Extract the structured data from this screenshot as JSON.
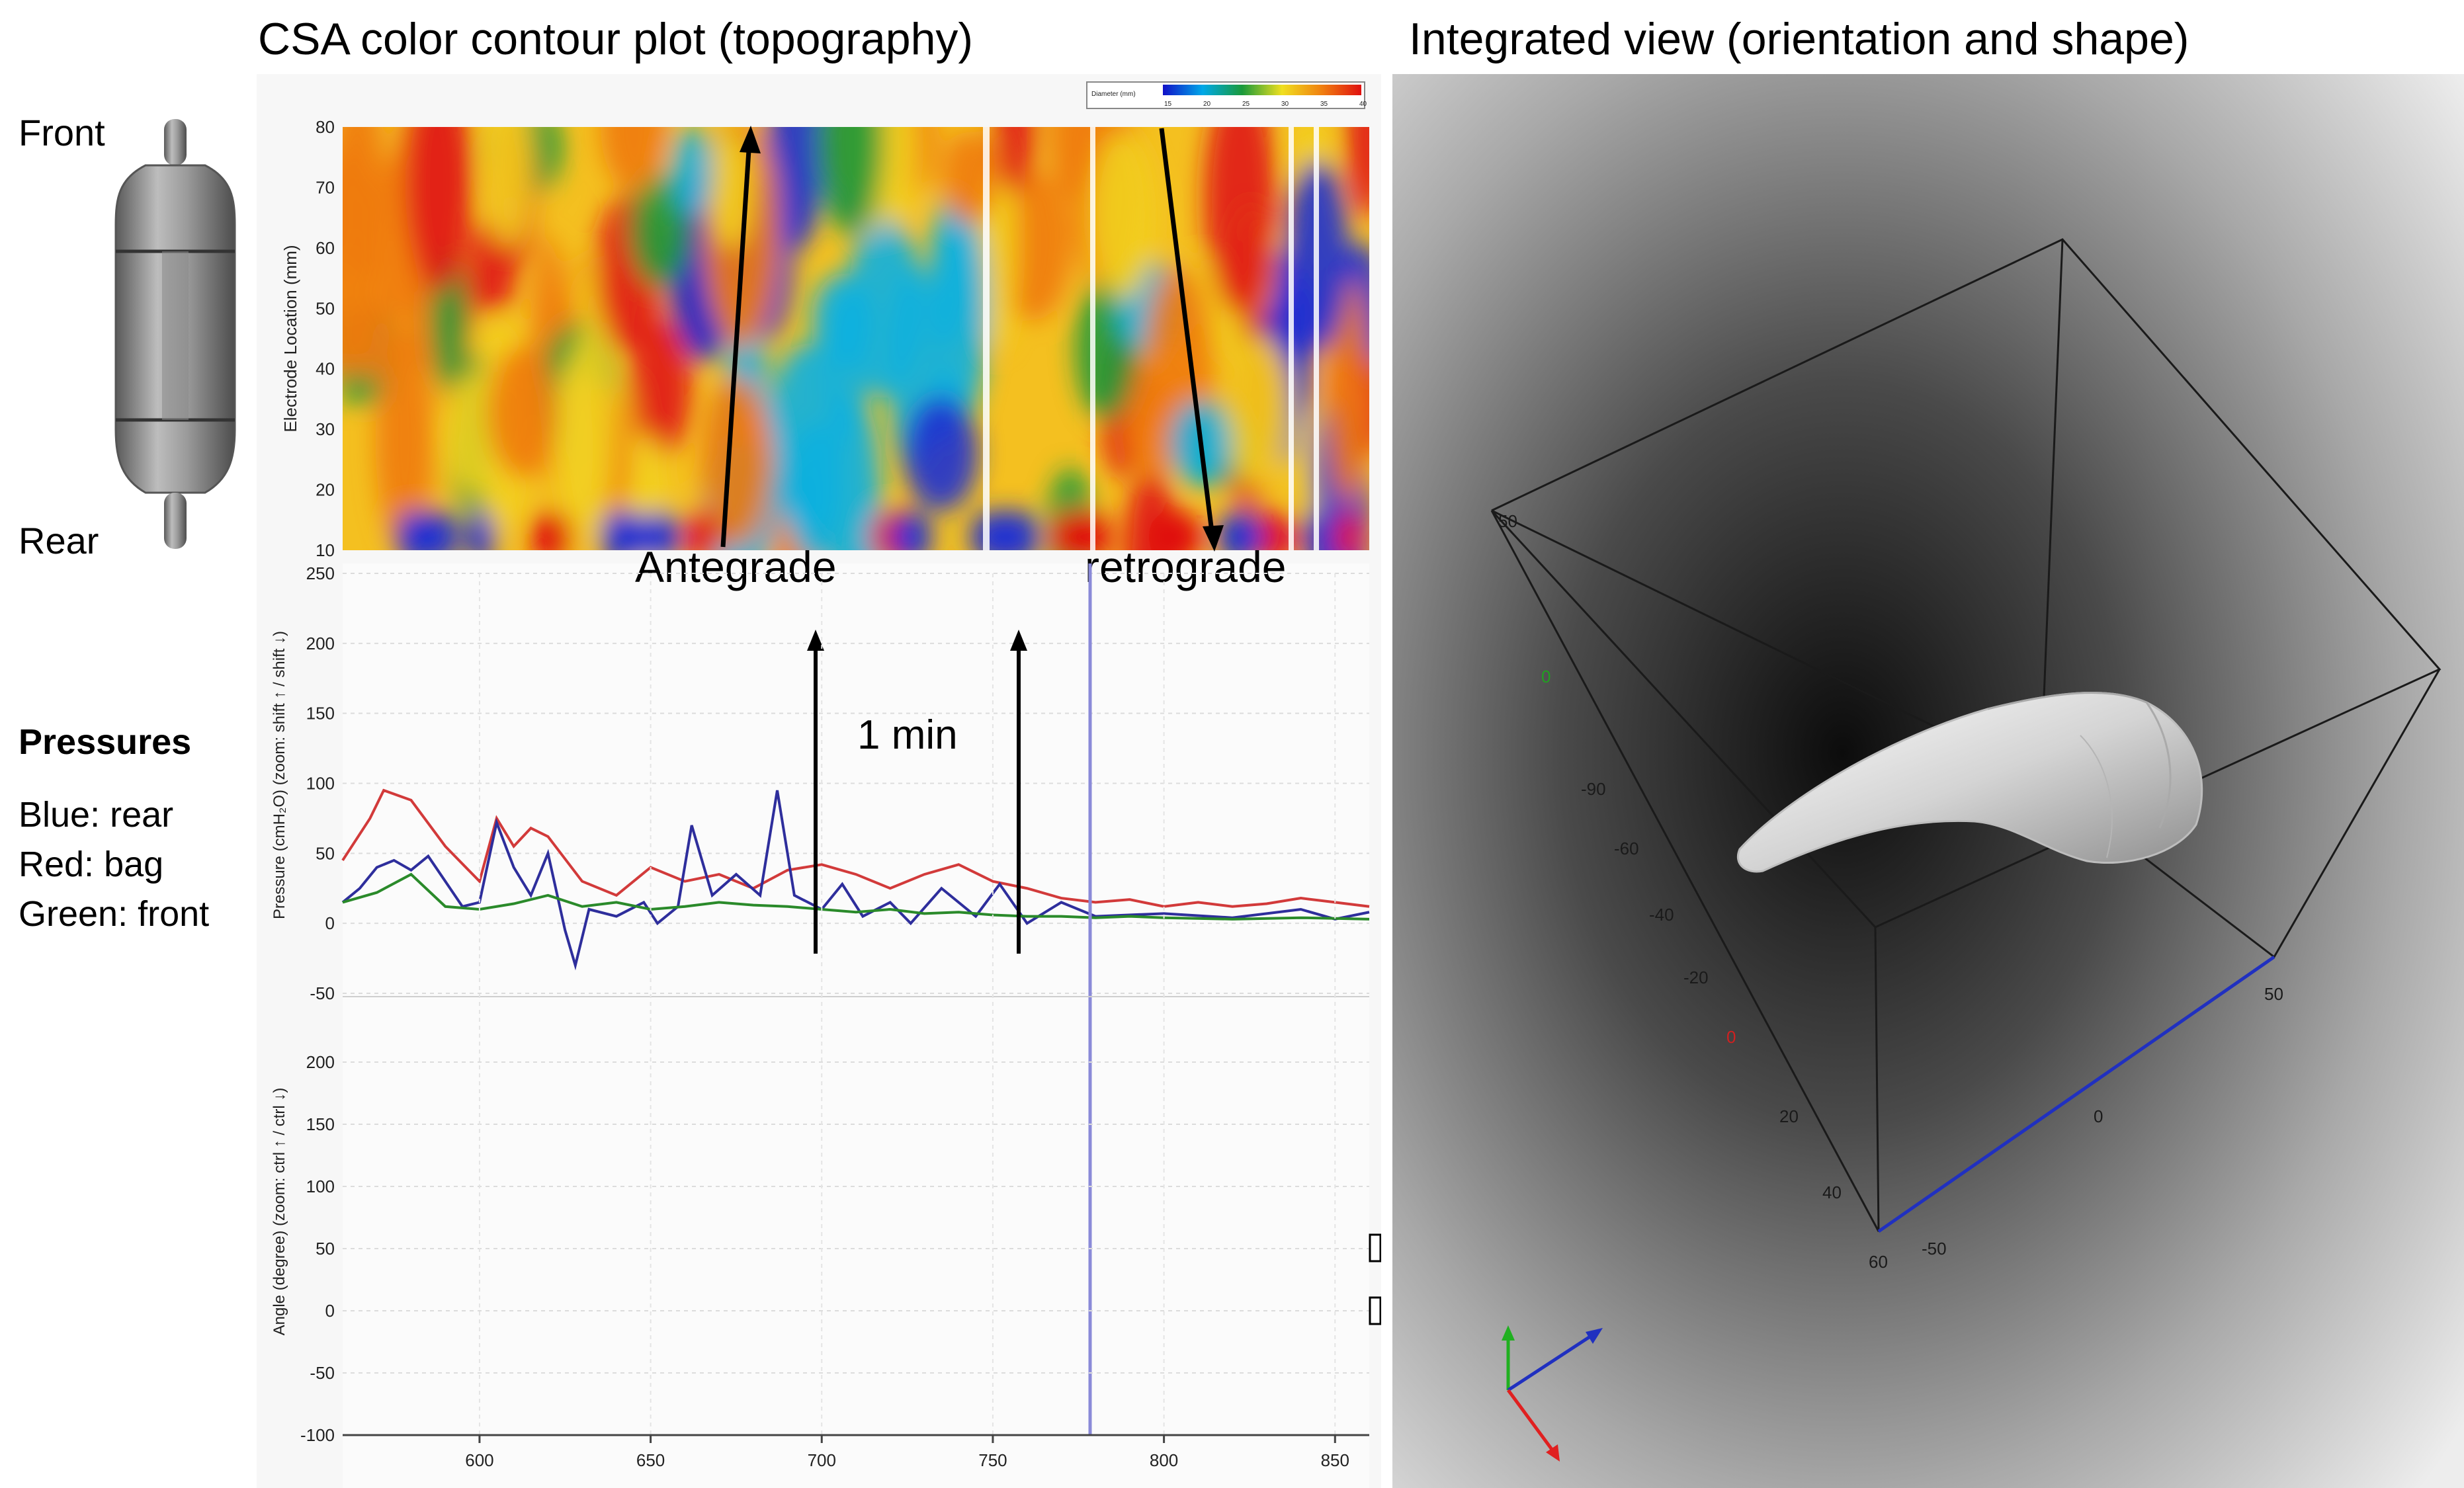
{
  "headings": {
    "left": "CSA color contour plot (topography)",
    "right": "Integrated view (orientation and shape)"
  },
  "probe": {
    "front_label": "Front",
    "rear_label": "Rear"
  },
  "legend": {
    "title": "Pressures",
    "lines": [
      "Blue: rear",
      "Red: bag",
      "Green: front"
    ]
  },
  "colorbar": {
    "title": "Diameter (mm)",
    "ticks": [
      "15",
      "20",
      "25",
      "30",
      "35",
      "40"
    ]
  },
  "contour": {
    "ylabel": "Electrode Location (mm)",
    "yticks": [
      "80",
      "70",
      "60",
      "50",
      "40",
      "30",
      "20",
      "10"
    ]
  },
  "annotations": {
    "antegrade": "Antegrade",
    "retrograde": "retrograde",
    "one_min": "1 min"
  },
  "chart_data": [
    {
      "type": "line",
      "ylabel": "Pressure (cmH₂O) (zoom: shift ↑ / shift ↓)",
      "ylim": [
        -50,
        250
      ],
      "yticks": [
        "250",
        "200",
        "150",
        "100",
        "50",
        "0",
        "-50"
      ],
      "xlim": [
        560,
        860
      ],
      "series": [
        {
          "name": "bag",
          "color": "#d23a3a",
          "x": [
            560,
            568,
            572,
            580,
            590,
            600,
            605,
            610,
            615,
            620,
            630,
            640,
            650,
            660,
            670,
            680,
            690,
            700,
            710,
            720,
            730,
            740,
            750,
            760,
            770,
            780,
            790,
            800,
            810,
            820,
            830,
            840,
            850,
            860
          ],
          "y": [
            45,
            75,
            95,
            88,
            55,
            30,
            75,
            55,
            68,
            62,
            30,
            20,
            40,
            30,
            35,
            25,
            38,
            42,
            35,
            25,
            35,
            42,
            30,
            25,
            18,
            15,
            17,
            12,
            15,
            12,
            14,
            18,
            15,
            12
          ]
        },
        {
          "name": "rear",
          "color": "#2e2e9c",
          "x": [
            560,
            565,
            570,
            575,
            580,
            585,
            590,
            595,
            600,
            605,
            610,
            615,
            620,
            625,
            628,
            632,
            640,
            648,
            652,
            658,
            662,
            668,
            675,
            682,
            687,
            692,
            700,
            706,
            712,
            720,
            726,
            735,
            745,
            752,
            760,
            770,
            780,
            800,
            820,
            840,
            850,
            860
          ],
          "y": [
            15,
            25,
            40,
            45,
            38,
            48,
            30,
            12,
            15,
            72,
            40,
            20,
            50,
            -5,
            -30,
            10,
            5,
            15,
            0,
            12,
            70,
            20,
            35,
            20,
            95,
            20,
            10,
            28,
            5,
            15,
            0,
            25,
            5,
            28,
            0,
            15,
            5,
            7,
            4,
            10,
            3,
            8
          ]
        },
        {
          "name": "front",
          "color": "#2a8a2a",
          "x": [
            560,
            570,
            580,
            590,
            600,
            610,
            620,
            630,
            640,
            650,
            660,
            670,
            680,
            690,
            700,
            710,
            720,
            730,
            740,
            750,
            760,
            770,
            780,
            790,
            800,
            820,
            840,
            860
          ],
          "y": [
            15,
            22,
            35,
            12,
            10,
            14,
            20,
            12,
            15,
            10,
            12,
            15,
            13,
            12,
            10,
            8,
            10,
            7,
            8,
            6,
            5,
            5,
            4,
            5,
            4,
            3,
            4,
            3
          ]
        }
      ]
    },
    {
      "type": "line",
      "ylabel": "Angle (degree) (zoom: ctrl ↑ / ctrl ↓)",
      "ylim": [
        -100,
        250
      ],
      "yticks": [
        "200",
        "150",
        "100",
        "50",
        "0",
        "-50",
        "-100"
      ],
      "xlabel": "",
      "xticks": [
        "600",
        "650",
        "700",
        "750",
        "800",
        "850"
      ],
      "series": []
    }
  ],
  "view3d": {
    "box_ticks": {
      "left": [
        "50",
        "0",
        "-90",
        "-60",
        "-40",
        "-20",
        "0",
        "20",
        "40",
        "60"
      ],
      "blue_axis": [
        "50",
        "0",
        "-50"
      ]
    },
    "axis_colors": {
      "x": "#2030c0",
      "y": "#20b020",
      "z": "#e02020"
    }
  }
}
